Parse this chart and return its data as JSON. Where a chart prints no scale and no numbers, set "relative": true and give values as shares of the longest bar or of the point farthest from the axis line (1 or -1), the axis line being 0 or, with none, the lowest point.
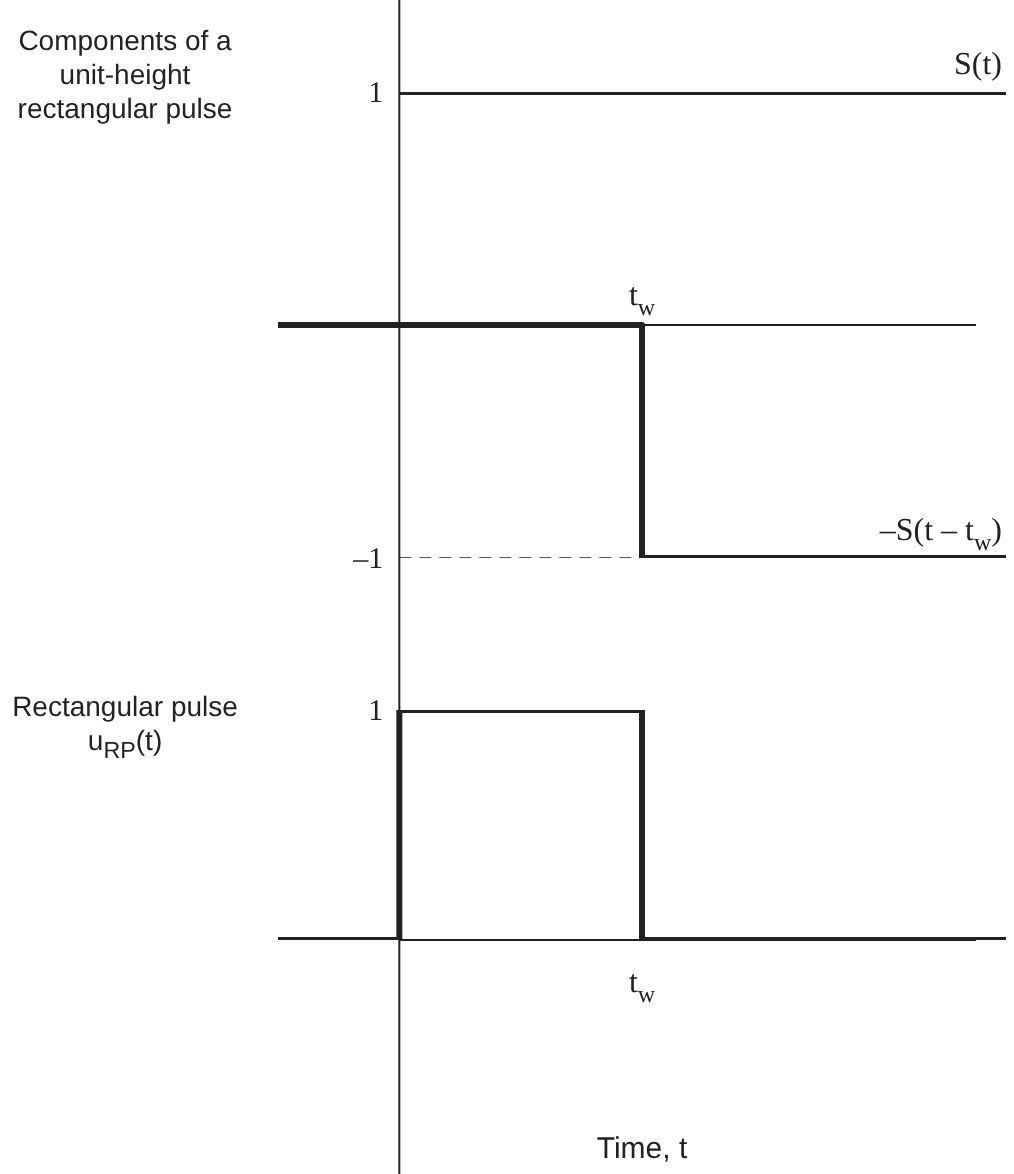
{
  "chart_data": [
    {
      "type": "step",
      "relative": true,
      "ylabel": "Components of a unit-height rectangular pulse",
      "categories": [
        null,
        null,
        null,
        null,
        null,
        null,
        null
      ],
      "legend": false,
      "annotations": [
        "1",
        "–1",
        {
          "text": "t$_{w}$",
          "y": 0
        }
      ],
      "series": [
        {
          "name": "S(t)",
          "color": "#222222",
          "values": [
            null,
            1,
            1,
            1,
            1,
            1,
            1
          ]
        },
        {
          "name": "–S(t – t$_{w}$)",
          "color": "#222222",
          "values": [
            0,
            0,
            0,
            -1,
            -1,
            -1,
            -1
          ]
        },
        {
          "line_style": "dashed",
          "color": "#555555",
          "values": [
            null,
            -1,
            -1,
            -1,
            null,
            null,
            null
          ]
        }
      ]
    },
    {
      "type": "step",
      "relative": true,
      "ylabel": "Rectangular pulse u$_{RP}$(t)",
      "xlabel": "Time, t",
      "categories": [
        null,
        null,
        null,
        null,
        null,
        null,
        null
      ],
      "legend": false,
      "annotations": [
        "1",
        {
          "text": "t$_{w}$",
          "y": 0
        }
      ],
      "series": [
        {
          "color": "#222222",
          "values": [
            0,
            1,
            1,
            0,
            0,
            0,
            0
          ]
        }
      ]
    }
  ]
}
